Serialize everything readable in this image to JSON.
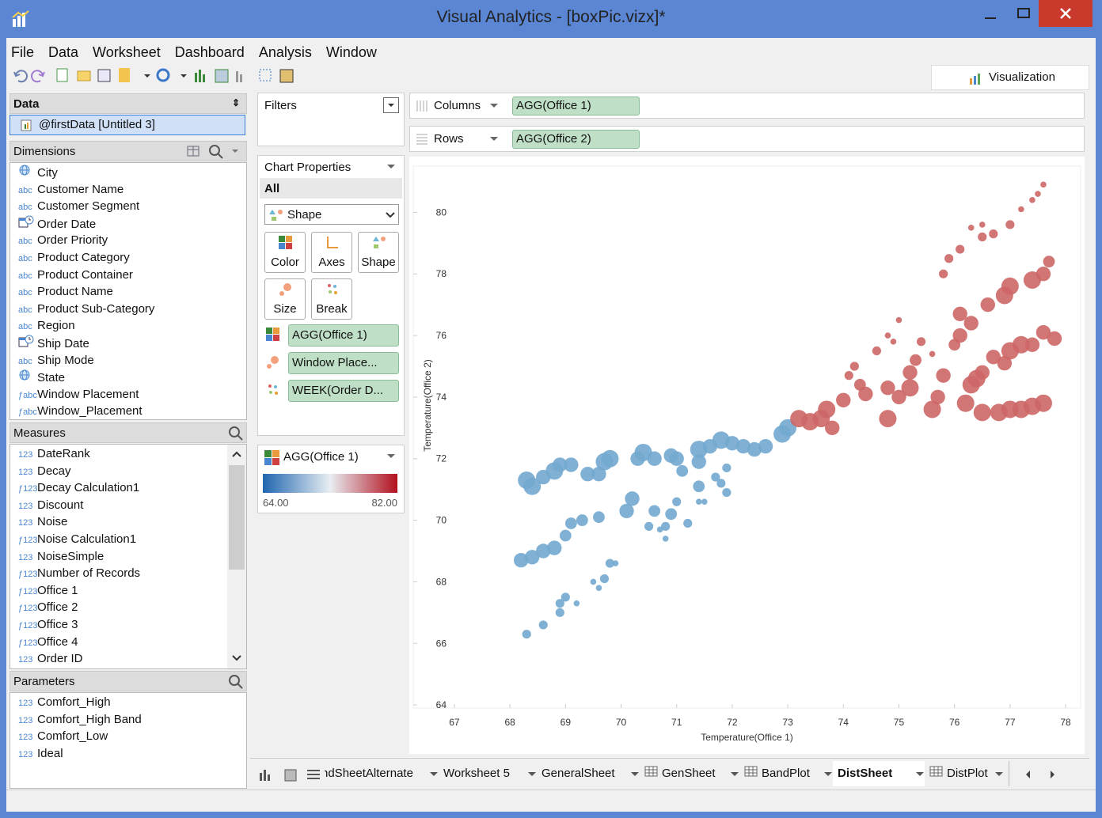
{
  "window": {
    "title": "Visual Analytics - [boxPic.vizx]*"
  },
  "menu": [
    "File",
    "Data",
    "Worksheet",
    "Dashboard",
    "Analysis",
    "Window"
  ],
  "toolbar": {
    "visualization": "Visualization"
  },
  "data_panel": {
    "title": "Data",
    "source": "@firstData [Untitled 3]",
    "dimensions_title": "Dimensions",
    "dimensions": [
      {
        "icon_type": "globe",
        "label": "City"
      },
      {
        "icon": "abc",
        "label": "Customer Name"
      },
      {
        "icon": "abc",
        "label": "Customer Segment"
      },
      {
        "icon_type": "date",
        "label": "Order Date"
      },
      {
        "icon": "abc",
        "label": "Order Priority"
      },
      {
        "icon": "abc",
        "label": "Product Category"
      },
      {
        "icon": "abc",
        "label": "Product Container"
      },
      {
        "icon": "abc",
        "label": "Product Name"
      },
      {
        "icon": "abc",
        "label": "Product Sub-Category"
      },
      {
        "icon": "abc",
        "label": "Region"
      },
      {
        "icon_type": "date",
        "label": "Ship Date"
      },
      {
        "icon": "abc",
        "label": "Ship Mode"
      },
      {
        "icon_type": "globe",
        "label": "State"
      },
      {
        "icon": "ƒabc",
        "label": "Window Placement"
      },
      {
        "icon": "ƒabc",
        "label": "Window_Placement"
      }
    ],
    "measures_title": "Measures",
    "measures": [
      {
        "icon": "123",
        "label": "DateRank"
      },
      {
        "icon": "123",
        "label": "Decay"
      },
      {
        "icon": "ƒ123",
        "label": "Decay Calculation1"
      },
      {
        "icon": "123",
        "label": "Discount"
      },
      {
        "icon": "123",
        "label": "Noise"
      },
      {
        "icon": "ƒ123",
        "label": "Noise Calculation1"
      },
      {
        "icon": "123",
        "label": "NoiseSimple"
      },
      {
        "icon": "ƒ123",
        "label": "Number of Records"
      },
      {
        "icon": "ƒ123",
        "label": "Office 1"
      },
      {
        "icon": "ƒ123",
        "label": "Office 2"
      },
      {
        "icon": "ƒ123",
        "label": "Office 3"
      },
      {
        "icon": "ƒ123",
        "label": "Office 4"
      },
      {
        "icon": "123",
        "label": "Order ID"
      }
    ],
    "parameters_title": "Parameters",
    "parameters": [
      {
        "icon": "123",
        "label": "Comfort_High"
      },
      {
        "icon": "123",
        "label": "Comfort_High Band"
      },
      {
        "icon": "123",
        "label": "Comfort_Low"
      },
      {
        "icon": "123",
        "label": "Ideal"
      }
    ]
  },
  "filters": {
    "title": "Filters"
  },
  "chart_properties": {
    "title": "Chart Properties",
    "scope": "All",
    "mark_type": "Shape",
    "buttons": [
      "Color",
      "Axes",
      "Shape",
      "Size",
      "Break"
    ],
    "encodings": [
      "AGG(Office 1)",
      "Window Place...",
      "WEEK(Order D..."
    ]
  },
  "color_legend": {
    "title": "AGG(Office 1)",
    "min": {
      "value": 64,
      "label": "64.00"
    },
    "max": {
      "value": 82,
      "label": "82.00"
    }
  },
  "shelves": {
    "columns_label": "Columns",
    "columns_pill": "AGG(Office 1)",
    "rows_label": "Rows",
    "rows_pill": "AGG(Office 2)"
  },
  "tabs": {
    "items": [
      "ndSheetAlternate",
      "Worksheet 5",
      "GeneralSheet",
      "GenSheet",
      "BandPlot",
      "DistSheet",
      "DistPlot"
    ],
    "active": 5
  },
  "chart_data": {
    "type": "scatter",
    "xlabel": "Temperature(Office 1)",
    "ylabel": "Temperature(Office 2)",
    "xlim": [
      66.26,
      78.27
    ],
    "ylim": [
      63.9,
      81.5
    ],
    "xticks": [
      67,
      68,
      69,
      70,
      71,
      72,
      73,
      74,
      75,
      76,
      77,
      78
    ],
    "yticks": [
      64,
      66,
      68,
      70,
      72,
      74,
      76,
      78,
      80
    ],
    "series": [
      {
        "color": "#72a8cf",
        "x": [
          68.3,
          68.4,
          68.6,
          68.8,
          68.9,
          69.1,
          69.4,
          69.6,
          69.7,
          69.8,
          70.3,
          70.4,
          70.6,
          70.9,
          71.0,
          71.4,
          71.4,
          71.6,
          71.8,
          72.0,
          72.2,
          72.4,
          72.6,
          72.9,
          73.0,
          71.1,
          71.4,
          71.7,
          71.8,
          71.9,
          71.9,
          71.5,
          68.2,
          68.4,
          68.6,
          68.8,
          69.0,
          69.1,
          69.3,
          69.6,
          70.1,
          70.2,
          70.6,
          70.5,
          70.9,
          71.0,
          70.8,
          71.2,
          70.8,
          70.7,
          71.4,
          68.3,
          68.6,
          68.9,
          68.9,
          69.0,
          69.2,
          69.5,
          69.7,
          69.8,
          69.9,
          69.6
        ],
        "values": [
          71.3,
          71.1,
          71.4,
          71.6,
          71.8,
          71.8,
          71.5,
          71.5,
          71.9,
          72.0,
          72.0,
          72.2,
          72.0,
          72.1,
          72.0,
          72.3,
          71.9,
          72.4,
          72.6,
          72.5,
          72.4,
          72.3,
          72.4,
          72.8,
          73.0,
          71.6,
          71.1,
          71.4,
          71.2,
          71.7,
          70.9,
          70.6,
          68.7,
          68.8,
          69.0,
          69.1,
          69.5,
          69.9,
          70.0,
          70.1,
          70.3,
          70.7,
          70.3,
          69.8,
          70.2,
          70.6,
          69.8,
          69.9,
          69.4,
          69.7,
          70.6,
          66.3,
          66.6,
          67.0,
          67.3,
          67.5,
          67.3,
          68.0,
          68.1,
          68.6,
          68.6,
          67.8
        ],
        "sizes": [
          5,
          5,
          4,
          5,
          4,
          4,
          4,
          4,
          5,
          5,
          4,
          5,
          4,
          4,
          4,
          5,
          4,
          4,
          5,
          4,
          4,
          4,
          4,
          5,
          5,
          3,
          3,
          2,
          2,
          2,
          2,
          1,
          4,
          4,
          4,
          4,
          3,
          3,
          3,
          3,
          4,
          4,
          3,
          2,
          3,
          2,
          2,
          2,
          1,
          1,
          1,
          2,
          2,
          2,
          2,
          2,
          1,
          1,
          2,
          2,
          1,
          1
        ]
      },
      {
        "color": "#cd6666",
        "x": [
          73.2,
          73.4,
          73.6,
          73.7,
          73.8,
          74.0,
          74.3,
          74.4,
          74.8,
          74.8,
          75.0,
          75.2,
          75.2,
          75.3,
          75.4,
          75.6,
          75.6,
          75.7,
          75.8,
          76.0,
          76.1,
          76.3,
          76.4,
          76.5,
          76.7,
          76.9,
          77.0,
          77.2,
          77.4,
          77.6,
          77.8,
          76.2,
          76.5,
          76.8,
          77.0,
          77.2,
          77.4,
          77.6,
          76.1,
          76.3,
          76.6,
          76.9,
          77.0,
          77.4,
          77.6,
          77.7,
          75.8,
          75.9,
          76.1,
          76.5,
          76.7,
          77.0,
          77.2,
          77.4,
          77.5,
          77.6,
          76.3,
          76.5,
          74.1,
          74.2,
          74.6,
          74.8,
          75.0,
          74.9
        ],
        "values": [
          73.3,
          73.2,
          73.3,
          73.6,
          73.0,
          73.9,
          74.4,
          74.1,
          73.3,
          74.3,
          74.0,
          74.3,
          74.8,
          75.2,
          75.8,
          75.4,
          73.6,
          74.0,
          74.7,
          75.7,
          76.0,
          74.4,
          74.6,
          74.8,
          75.3,
          75.1,
          75.5,
          75.7,
          75.7,
          76.1,
          75.9,
          73.8,
          73.5,
          73.5,
          73.6,
          73.6,
          73.7,
          73.8,
          76.7,
          76.4,
          77.0,
          77.3,
          77.6,
          77.8,
          78.0,
          78.4,
          78.0,
          78.5,
          78.8,
          79.2,
          79.3,
          79.6,
          80.1,
          80.4,
          80.6,
          80.9,
          79.5,
          79.6,
          74.7,
          75.0,
          75.5,
          76.0,
          76.5,
          75.8
        ],
        "sizes": [
          5,
          5,
          5,
          5,
          4,
          4,
          3,
          4,
          5,
          4,
          4,
          5,
          4,
          3,
          2,
          1,
          5,
          4,
          4,
          3,
          4,
          5,
          5,
          4,
          4,
          4,
          5,
          5,
          4,
          4,
          4,
          5,
          5,
          5,
          5,
          5,
          5,
          5,
          4,
          4,
          4,
          5,
          5,
          5,
          4,
          3,
          2,
          2,
          2,
          2,
          2,
          2,
          1,
          1,
          1,
          1,
          1,
          1,
          2,
          2,
          2,
          1,
          1,
          1
        ]
      }
    ]
  }
}
